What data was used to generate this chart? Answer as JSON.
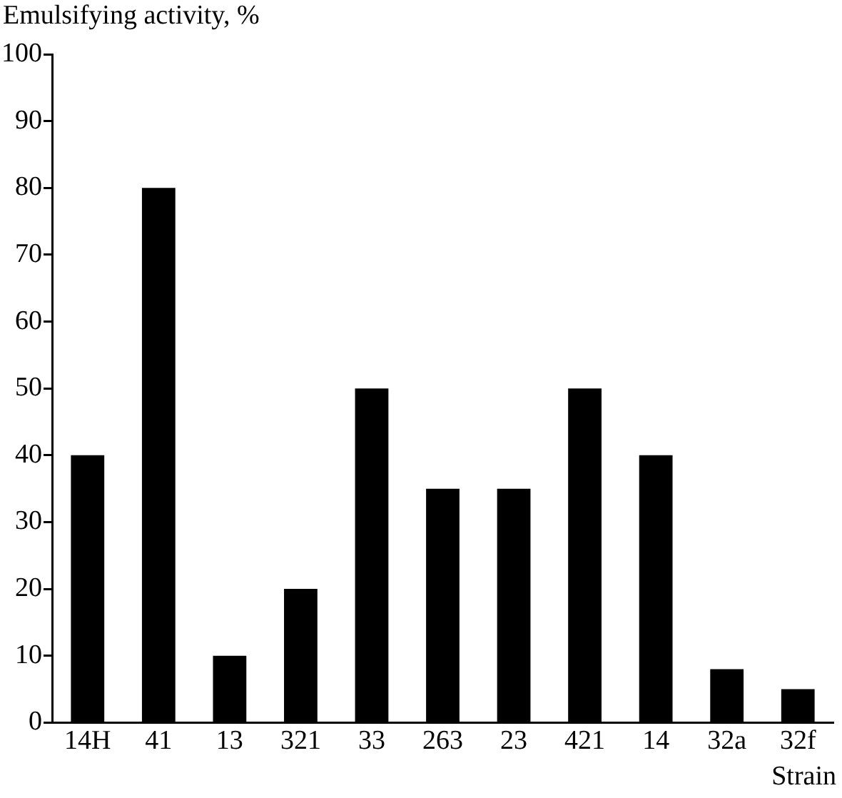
{
  "chart_data": {
    "type": "bar",
    "ylabel": "Emulsifying activity, %",
    "xlabel": "Strain",
    "categories": [
      "14H",
      "41",
      "13",
      "321",
      "33",
      "263",
      "23",
      "421",
      "14",
      "32a",
      "32f"
    ],
    "values": [
      40,
      80,
      10,
      20,
      50,
      35,
      35,
      50,
      40,
      8,
      5
    ],
    "color": "#000000",
    "ylim": [
      0,
      100
    ],
    "yticks": [
      0,
      10,
      20,
      30,
      40,
      50,
      60,
      70,
      80,
      90,
      100
    ],
    "grid": false,
    "legend": false
  }
}
